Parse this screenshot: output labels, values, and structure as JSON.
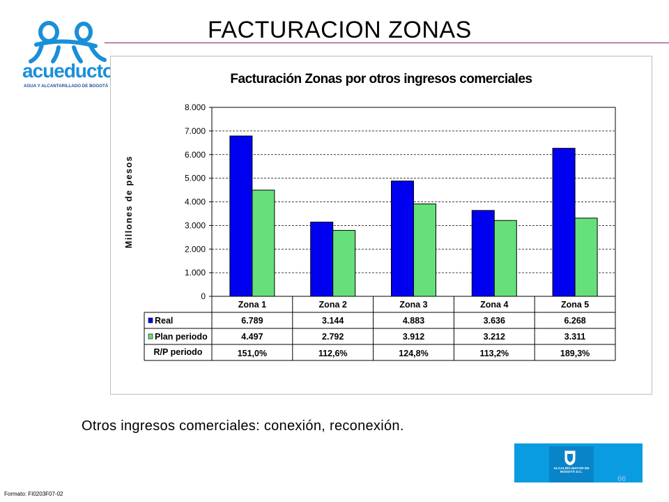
{
  "slide": {
    "title": "FACTURACION ZONAS",
    "caption": "Otros ingresos comerciales: conexión, reconexión.",
    "footer_code": "Formato: FI0203F07-02",
    "page_number": "66"
  },
  "logo": {
    "word": "acueducto",
    "subtitle": "AGUA Y ALCANTARILLADO DE BOGOTÁ",
    "brand_color": "#1a8fd8"
  },
  "alcaldia": {
    "text": "ALCALDÍA MAYOR DE BOGOTÁ D.C.",
    "color": "#0a9ce0"
  },
  "chart_data": {
    "type": "bar",
    "title": "Facturación Zonas por otros ingresos comerciales",
    "ylabel": "Millones de pesos",
    "xlabel": "",
    "ylim": [
      0,
      8000
    ],
    "yticks": [
      "0",
      "1.000",
      "2.000",
      "3.000",
      "4.000",
      "5.000",
      "6.000",
      "7.000",
      "8.000"
    ],
    "grid": "horizontal dashed",
    "categories": [
      "Zona 1",
      "Zona 2",
      "Zona 3",
      "Zona 4",
      "Zona 5"
    ],
    "series": [
      {
        "name": "Real",
        "color": "#0000f0",
        "values": [
          6789,
          3144,
          4883,
          3636,
          6268
        ],
        "labels": [
          "6.789",
          "3.144",
          "4.883",
          "3.636",
          "6.268"
        ]
      },
      {
        "name": "Plan periodo",
        "color": "#66e07a",
        "values": [
          4497,
          2792,
          3912,
          3212,
          3311
        ],
        "labels": [
          "4.497",
          "2.792",
          "3.912",
          "3.212",
          "3.311"
        ]
      }
    ],
    "extra_row": {
      "name": "R/P periodo",
      "labels": [
        "151,0%",
        "112,6%",
        "124,8%",
        "113,2%",
        "189,3%"
      ]
    },
    "legend": "data table"
  }
}
